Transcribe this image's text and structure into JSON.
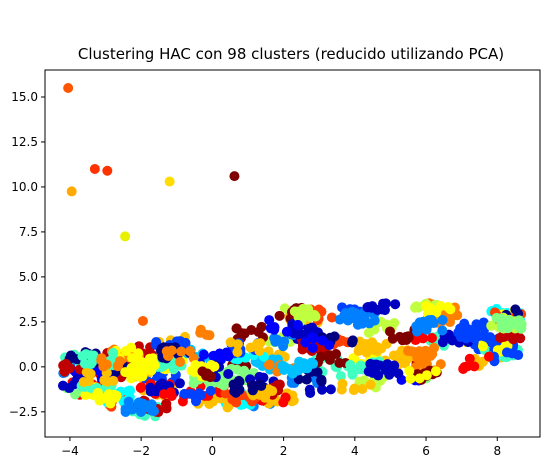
{
  "chart_data": {
    "type": "scatter",
    "title": "Clustering HAC con 98 clusters (reducido utilizando PCA)",
    "xlabel": "",
    "ylabel": "",
    "xlim": [
      -4.7,
      9.2
    ],
    "ylim": [
      -3.9,
      16.5
    ],
    "xticks": [
      -4,
      -2,
      0,
      2,
      4,
      6,
      8
    ],
    "yticks": [
      -2.5,
      0.0,
      2.5,
      5.0,
      7.5,
      10.0,
      12.5,
      15.0
    ],
    "xtick_labels": [
      "−4",
      "−2",
      "0",
      "2",
      "4",
      "6",
      "8"
    ],
    "ytick_labels": [
      "−2.5",
      "0.0",
      "2.5",
      "5.0",
      "7.5",
      "10.0",
      "12.5",
      "15.0"
    ],
    "grid": false,
    "legend": "none",
    "colormap": "jet",
    "outliers": [
      {
        "x": -4.05,
        "y": 15.5,
        "color": "#ff5500"
      },
      {
        "x": -3.3,
        "y": 11.0,
        "color": "#ff3300"
      },
      {
        "x": -2.95,
        "y": 10.9,
        "color": "#ff3300"
      },
      {
        "x": -3.95,
        "y": 9.75,
        "color": "#ffaa00"
      },
      {
        "x": -1.2,
        "y": 10.3,
        "color": "#ffdd00"
      },
      {
        "x": -2.45,
        "y": 7.25,
        "color": "#e8f000"
      },
      {
        "x": 0.62,
        "y": 10.6,
        "color": "#800000"
      },
      {
        "x": -1.95,
        "y": 2.55,
        "color": "#ff6000"
      }
    ],
    "main_band": {
      "description_points": "dense band of clustered points",
      "x_range": [
        -4.2,
        8.7
      ],
      "y_bottom_at_xmin": -0.3,
      "y_bottom_at_xmax": 0.6,
      "band_lower_at_x": [
        [
          -3.5,
          -1.6
        ],
        [
          -2.0,
          -3.0
        ],
        [
          2.0,
          -2.0
        ],
        [
          6.0,
          -0.7
        ],
        [
          8.6,
          0.6
        ]
      ],
      "band_upper_at_x": [
        [
          -4.0,
          0.7
        ],
        [
          -2.0,
          1.5
        ],
        [
          0.0,
          2.3
        ],
        [
          2.0,
          3.3
        ],
        [
          4.0,
          3.6
        ],
        [
          7.5,
          3.5
        ]
      ],
      "cluster_colors": [
        "#000080",
        "#0000c0",
        "#0000ff",
        "#0040ff",
        "#0080ff",
        "#00c0ff",
        "#00ffff",
        "#40ffc0",
        "#80ff80",
        "#c0ff40",
        "#ffff00",
        "#ffc000",
        "#ff8000",
        "#ff4000",
        "#ff0000",
        "#c00000",
        "#800000"
      ]
    }
  }
}
